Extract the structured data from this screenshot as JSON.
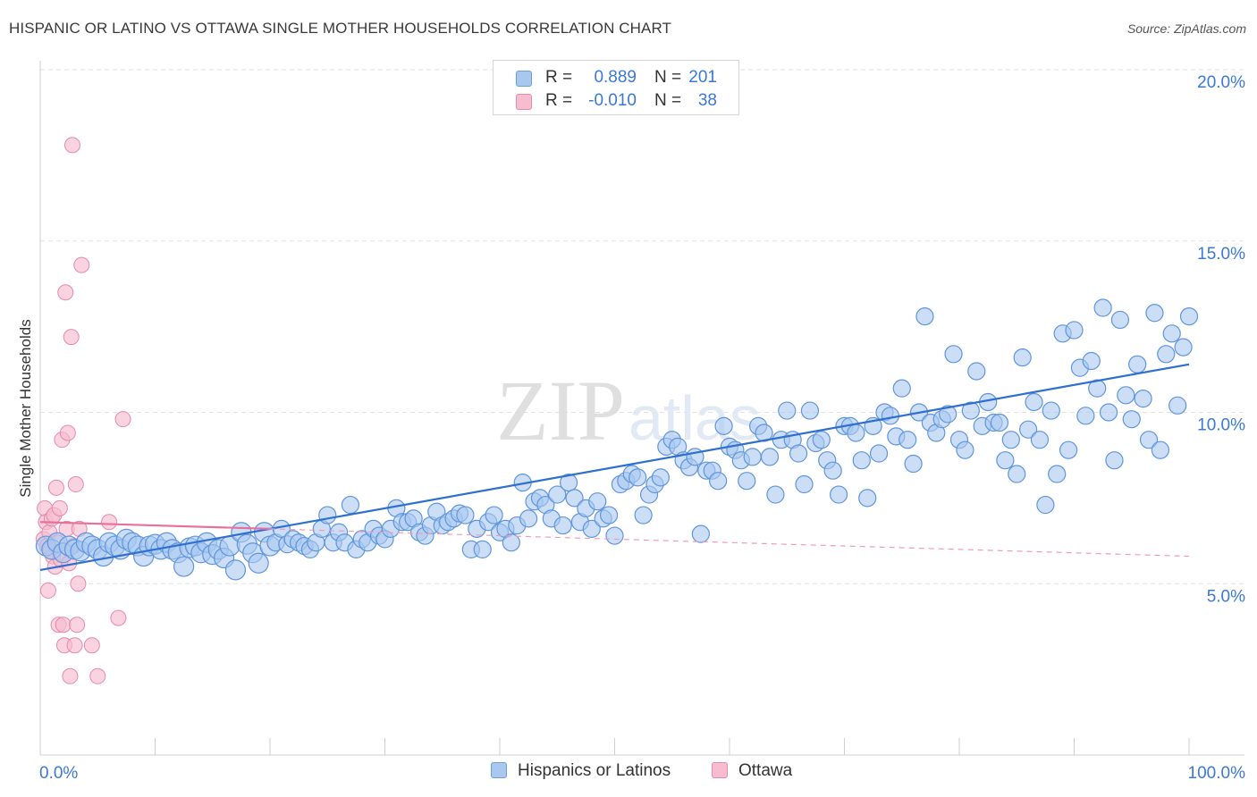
{
  "title": "HISPANIC OR LATINO VS OTTAWA SINGLE MOTHER HOUSEHOLDS CORRELATION CHART",
  "source": "Source: ZipAtlas.com",
  "watermark": {
    "zip": "ZIP",
    "atlas": "atlas"
  },
  "legend": {
    "r_label": "R =",
    "n_label": "N =",
    "rows": [
      {
        "r": "0.889",
        "n": "201",
        "color": "#a9c8f0",
        "border": "#6b9ee0"
      },
      {
        "r": "-0.010",
        "n": "38",
        "color": "#f7bcd0",
        "border": "#e88aaa"
      }
    ]
  },
  "chart_data": {
    "type": "scatter",
    "title": "HISPANIC OR LATINO VS OTTAWA SINGLE MOTHER HOUSEHOLDS CORRELATION CHART",
    "xlabel": "",
    "ylabel": "Single Mother Households",
    "xlim": [
      0,
      100
    ],
    "ylim": [
      0,
      20
    ],
    "x_tick_labels": [
      "0.0%",
      "100.0%"
    ],
    "y_tick_labels": [
      "5.0%",
      "10.0%",
      "15.0%",
      "20.0%"
    ],
    "y_ticks": [
      5,
      10,
      15,
      20
    ],
    "grid": true,
    "legend_position": "top-center",
    "series": [
      {
        "name": "Hispanics or Latinos",
        "color": "#a9c8f0",
        "border": "#5f95dd",
        "trend": {
          "x": [
            0,
            100
          ],
          "y": [
            5.4,
            11.4
          ],
          "color": "#2f6fcf"
        },
        "points": [
          [
            0.5,
            6.1
          ],
          [
            1,
            6.0
          ],
          [
            1.5,
            6.2
          ],
          [
            2,
            5.9
          ],
          [
            2.5,
            6.1
          ],
          [
            3,
            6.0
          ],
          [
            3.5,
            5.95
          ],
          [
            4,
            6.2
          ],
          [
            4.5,
            6.1
          ],
          [
            5,
            6.0
          ],
          [
            5.5,
            5.8
          ],
          [
            6,
            6.2
          ],
          [
            6.5,
            6.1
          ],
          [
            7,
            6.0
          ],
          [
            7.5,
            6.3
          ],
          [
            8,
            6.2
          ],
          [
            8.5,
            6.1
          ],
          [
            9,
            5.8
          ],
          [
            9.5,
            6.1
          ],
          [
            10,
            6.15
          ],
          [
            10.5,
            6.0
          ],
          [
            11,
            6.2
          ],
          [
            11.5,
            6.0
          ],
          [
            12,
            5.9
          ],
          [
            12.5,
            5.5
          ],
          [
            13,
            6.05
          ],
          [
            13.5,
            6.1
          ],
          [
            14,
            5.9
          ],
          [
            14.5,
            6.2
          ],
          [
            15,
            5.85
          ],
          [
            15.5,
            6.0
          ],
          [
            16,
            5.75
          ],
          [
            16.5,
            6.1
          ],
          [
            17,
            5.4
          ],
          [
            17.5,
            6.5
          ],
          [
            18,
            6.15
          ],
          [
            18.5,
            5.9
          ],
          [
            19,
            5.6
          ],
          [
            19.5,
            6.5
          ],
          [
            20,
            6.1
          ],
          [
            20.5,
            6.2
          ],
          [
            21,
            6.6
          ],
          [
            21.5,
            6.15
          ],
          [
            22,
            6.3
          ],
          [
            22.5,
            6.2
          ],
          [
            23,
            6.1
          ],
          [
            23.5,
            6.0
          ],
          [
            24,
            6.2
          ],
          [
            24.5,
            6.6
          ],
          [
            25,
            7.0
          ],
          [
            25.5,
            6.2
          ],
          [
            26,
            6.5
          ],
          [
            26.5,
            6.2
          ],
          [
            27,
            7.3
          ],
          [
            27.5,
            6.0
          ],
          [
            28,
            6.3
          ],
          [
            28.5,
            6.2
          ],
          [
            29,
            6.6
          ],
          [
            29.5,
            6.4
          ],
          [
            30,
            6.3
          ],
          [
            30.5,
            6.6
          ],
          [
            31,
            7.2
          ],
          [
            31.5,
            6.8
          ],
          [
            32,
            6.8
          ],
          [
            32.5,
            6.9
          ],
          [
            33,
            6.5
          ],
          [
            33.5,
            6.4
          ],
          [
            34,
            6.7
          ],
          [
            34.5,
            7.1
          ],
          [
            35,
            6.7
          ],
          [
            35.5,
            6.8
          ],
          [
            36,
            6.9
          ],
          [
            36.5,
            7.05
          ],
          [
            37,
            7.0
          ],
          [
            37.5,
            6.0
          ],
          [
            38,
            6.6
          ],
          [
            38.5,
            6.0
          ],
          [
            39,
            6.8
          ],
          [
            39.5,
            7.0
          ],
          [
            40,
            6.5
          ],
          [
            40.5,
            6.6
          ],
          [
            41,
            6.2
          ],
          [
            41.5,
            6.7
          ],
          [
            42,
            7.95
          ],
          [
            42.5,
            6.9
          ],
          [
            43,
            7.4
          ],
          [
            43.5,
            7.5
          ],
          [
            44,
            7.3
          ],
          [
            44.5,
            6.9
          ],
          [
            45,
            7.6
          ],
          [
            45.5,
            6.7
          ],
          [
            46,
            7.95
          ],
          [
            46.5,
            7.5
          ],
          [
            47,
            6.8
          ],
          [
            47.5,
            7.2
          ],
          [
            48,
            6.6
          ],
          [
            48.5,
            7.4
          ],
          [
            49,
            6.9
          ],
          [
            49.5,
            7.0
          ],
          [
            50,
            6.4
          ],
          [
            50.5,
            7.9
          ],
          [
            51,
            8.0
          ],
          [
            51.5,
            8.2
          ],
          [
            52,
            8.1
          ],
          [
            52.5,
            7.0
          ],
          [
            53,
            7.6
          ],
          [
            53.5,
            7.9
          ],
          [
            54,
            8.1
          ],
          [
            54.5,
            9.0
          ],
          [
            55,
            9.2
          ],
          [
            55.5,
            9.0
          ],
          [
            56,
            8.6
          ],
          [
            56.5,
            8.4
          ],
          [
            57,
            8.7
          ],
          [
            57.5,
            6.45
          ],
          [
            58,
            8.3
          ],
          [
            58.5,
            8.3
          ],
          [
            59,
            8.0
          ],
          [
            59.5,
            9.6
          ],
          [
            60,
            9.0
          ],
          [
            60.5,
            8.9
          ],
          [
            61,
            8.6
          ],
          [
            61.5,
            8.0
          ],
          [
            62,
            8.7
          ],
          [
            62.5,
            9.6
          ],
          [
            63,
            9.4
          ],
          [
            63.5,
            8.7
          ],
          [
            64,
            7.6
          ],
          [
            64.5,
            9.2
          ],
          [
            65,
            10.05
          ],
          [
            65.5,
            9.2
          ],
          [
            66,
            8.8
          ],
          [
            66.5,
            7.9
          ],
          [
            67,
            10.05
          ],
          [
            67.5,
            9.1
          ],
          [
            68,
            9.2
          ],
          [
            68.5,
            8.6
          ],
          [
            69,
            8.3
          ],
          [
            69.5,
            7.6
          ],
          [
            70,
            9.6
          ],
          [
            70.5,
            9.6
          ],
          [
            71,
            9.4
          ],
          [
            71.5,
            8.6
          ],
          [
            72,
            7.5
          ],
          [
            72.5,
            9.6
          ],
          [
            73,
            8.8
          ],
          [
            73.5,
            10.0
          ],
          [
            74,
            9.9
          ],
          [
            74.5,
            9.3
          ],
          [
            75,
            10.7
          ],
          [
            75.5,
            9.2
          ],
          [
            76,
            8.5
          ],
          [
            76.5,
            10.0
          ],
          [
            77,
            12.8
          ],
          [
            77.5,
            9.7
          ],
          [
            78,
            9.4
          ],
          [
            78.5,
            9.8
          ],
          [
            79,
            9.95
          ],
          [
            79.5,
            11.7
          ],
          [
            80,
            9.2
          ],
          [
            80.5,
            8.9
          ],
          [
            81,
            10.05
          ],
          [
            81.5,
            11.2
          ],
          [
            82,
            9.6
          ],
          [
            82.5,
            10.3
          ],
          [
            83,
            9.7
          ],
          [
            83.5,
            9.7
          ],
          [
            84,
            8.6
          ],
          [
            84.5,
            9.2
          ],
          [
            85,
            8.2
          ],
          [
            85.5,
            11.6
          ],
          [
            86,
            9.5
          ],
          [
            86.5,
            10.3
          ],
          [
            87,
            9.2
          ],
          [
            87.5,
            7.3
          ],
          [
            88,
            10.05
          ],
          [
            88.5,
            8.2
          ],
          [
            89,
            12.3
          ],
          [
            89.5,
            8.9
          ],
          [
            90,
            12.4
          ],
          [
            90.5,
            11.3
          ],
          [
            91,
            9.9
          ],
          [
            91.5,
            11.5
          ],
          [
            92,
            10.7
          ],
          [
            92.5,
            13.05
          ],
          [
            93,
            10.0
          ],
          [
            93.5,
            8.6
          ],
          [
            94,
            12.7
          ],
          [
            94.5,
            10.5
          ],
          [
            95,
            9.8
          ],
          [
            95.5,
            11.4
          ],
          [
            96,
            10.4
          ],
          [
            96.5,
            9.2
          ],
          [
            97,
            12.9
          ],
          [
            97.5,
            8.9
          ],
          [
            98,
            11.7
          ],
          [
            98.5,
            12.3
          ],
          [
            99,
            10.2
          ],
          [
            99.5,
            11.9
          ],
          [
            100,
            12.8
          ]
        ]
      },
      {
        "name": "Ottawa",
        "color": "#f7bcd0",
        "border": "#e58aa9",
        "trend_solid": {
          "x": [
            0,
            20
          ],
          "y": [
            6.8,
            6.6
          ],
          "color": "#e8719b"
        },
        "trend_dashed": {
          "x": [
            20,
            100
          ],
          "y": [
            6.6,
            5.8
          ],
          "color": "#ef9bb8"
        },
        "points": [
          [
            0.3,
            6.3
          ],
          [
            0.4,
            7.2
          ],
          [
            0.5,
            6.8
          ],
          [
            0.6,
            6.1
          ],
          [
            0.7,
            4.8
          ],
          [
            0.8,
            6.5
          ],
          [
            0.9,
            6.0
          ],
          [
            1.0,
            6.9
          ],
          [
            1.1,
            5.8
          ],
          [
            1.2,
            7.0
          ],
          [
            1.3,
            5.5
          ],
          [
            1.4,
            7.8
          ],
          [
            1.5,
            6.2
          ],
          [
            1.6,
            3.8
          ],
          [
            1.7,
            7.2
          ],
          [
            1.8,
            5.7
          ],
          [
            1.9,
            9.2
          ],
          [
            2.0,
            3.8
          ],
          [
            2.1,
            3.2
          ],
          [
            2.2,
            13.5
          ],
          [
            2.3,
            6.6
          ],
          [
            2.4,
            9.4
          ],
          [
            2.5,
            5.6
          ],
          [
            2.6,
            2.3
          ],
          [
            2.7,
            12.2
          ],
          [
            2.8,
            17.8
          ],
          [
            2.9,
            6.1
          ],
          [
            3.0,
            3.2
          ],
          [
            3.1,
            7.9
          ],
          [
            3.2,
            3.8
          ],
          [
            3.3,
            5.0
          ],
          [
            3.4,
            6.6
          ],
          [
            3.6,
            14.3
          ],
          [
            4.5,
            3.2
          ],
          [
            5.0,
            2.3
          ],
          [
            6.0,
            6.8
          ],
          [
            6.8,
            4.0
          ],
          [
            7.2,
            9.8
          ]
        ]
      }
    ]
  }
}
